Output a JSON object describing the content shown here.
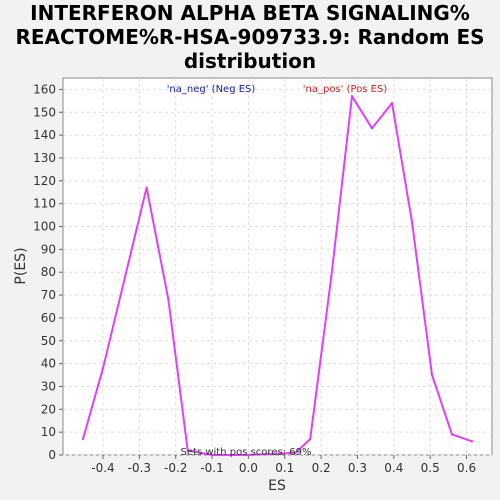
{
  "chart_data": {
    "type": "line",
    "title_lines": [
      "INTERFERON ALPHA BETA SIGNALING%",
      "REACTOME%R-HSA-909733.9: Random ES",
      "distribution"
    ],
    "xlabel": "ES",
    "ylabel": "P(ES)",
    "xlim": [
      -0.51,
      0.67
    ],
    "ylim": [
      0,
      165
    ],
    "x_ticks": [
      -0.4,
      -0.3,
      -0.2,
      -0.1,
      0.0,
      0.1,
      0.2,
      0.3,
      0.4,
      0.5,
      0.6
    ],
    "x_tick_labels": [
      "-0.4",
      "-0.3",
      "-0.2",
      "-0.1",
      "0.0",
      "0.1",
      "0.2",
      "0.3",
      "0.4",
      "0.5",
      "0.6"
    ],
    "y_ticks": [
      0,
      10,
      20,
      30,
      40,
      50,
      60,
      70,
      80,
      90,
      100,
      110,
      120,
      130,
      140,
      150,
      160
    ],
    "grid": true,
    "series": [
      {
        "name": "",
        "color": "#e040fb",
        "x": [
          -0.455,
          -0.4,
          -0.28,
          -0.22,
          -0.167,
          -0.1,
          0.0,
          0.13,
          0.17,
          0.228,
          0.285,
          0.34,
          0.395,
          0.45,
          0.505,
          0.56,
          0.615
        ],
        "y": [
          7,
          38,
          117,
          68,
          2,
          0,
          0,
          1,
          7,
          78,
          157,
          143,
          154,
          102,
          35,
          9,
          6
        ]
      }
    ],
    "legend": [
      {
        "label": "'na_neg' (Neg ES)",
        "color": "#1a1aa6"
      },
      {
        "label": "'na_pos' (Pos ES)",
        "color": "#cc2222"
      }
    ],
    "annotation": "Sets with pos scores: 69%"
  }
}
